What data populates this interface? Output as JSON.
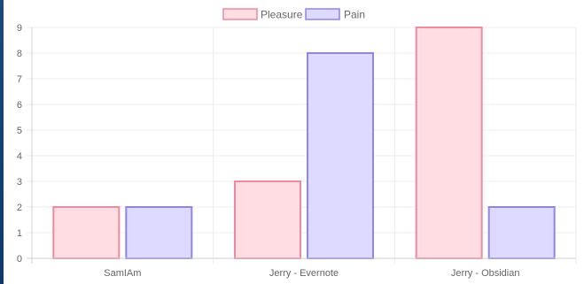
{
  "chart_data": {
    "type": "bar",
    "categories": [
      "SamIAm",
      "Jerry - Evernote",
      "Jerry - Obsidian"
    ],
    "series": [
      {
        "name": "Pleasure",
        "values": [
          2,
          3,
          9
        ],
        "fill": "#ffdde3",
        "stroke": "#f08a9e"
      },
      {
        "name": "Pain",
        "values": [
          2,
          8,
          2
        ],
        "fill": "#ddd9ff",
        "stroke": "#8f86e8"
      }
    ],
    "ylim": [
      0,
      9
    ],
    "yticks": [
      "0",
      "1",
      "2",
      "3",
      "4",
      "5",
      "6",
      "7",
      "8",
      "9"
    ],
    "grid": true,
    "legend": "top-center"
  }
}
